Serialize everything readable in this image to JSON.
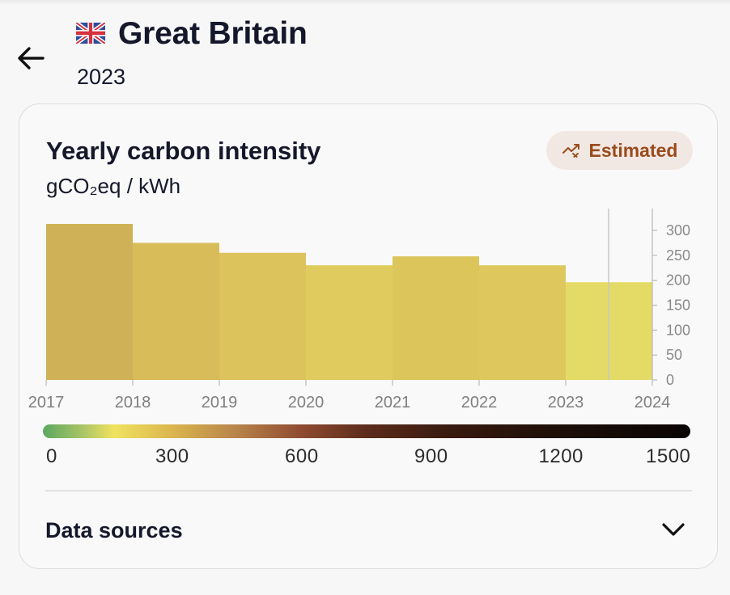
{
  "header": {
    "zone_name": "Great Britain",
    "year": "2023",
    "icons": {
      "back": "arrow-left-icon",
      "flag": "uk-flag-icon"
    }
  },
  "card": {
    "title": "Yearly carbon intensity",
    "unit": "gCO₂eq / kWh",
    "badge": {
      "label": "Estimated",
      "icon": "estimated-trend-icon"
    },
    "colors": {
      "badge_bg": "#f2e8e3",
      "badge_text": "#9a4b1d"
    }
  },
  "chart_data": {
    "type": "bar",
    "title": "Yearly carbon intensity",
    "ylabel": "gCO₂eq / kWh",
    "xlabel": "",
    "categories": [
      "2017",
      "2018",
      "2019",
      "2020",
      "2021",
      "2022",
      "2023"
    ],
    "values": [
      313,
      275,
      255,
      230,
      248,
      230,
      196
    ],
    "colors": [
      "#cfb257",
      "#d9bc5a",
      "#dcc35c",
      "#e0cb5e",
      "#dcc65b",
      "#dec85d",
      "#e4db66"
    ],
    "x_ticks": [
      "2017",
      "2018",
      "2019",
      "2020",
      "2021",
      "2022",
      "2023",
      "2024"
    ],
    "y_ticks": [
      0,
      50,
      100,
      150,
      200,
      250,
      300
    ],
    "ylim": [
      0,
      340
    ],
    "selected_year_marker": "2023",
    "grid": false
  },
  "color_scale": {
    "labels": [
      "0",
      "300",
      "600",
      "900",
      "1200",
      "1500"
    ],
    "min": 0,
    "max": 1500
  },
  "data_sources": {
    "label": "Data sources",
    "icon": "chevron-down-icon"
  }
}
